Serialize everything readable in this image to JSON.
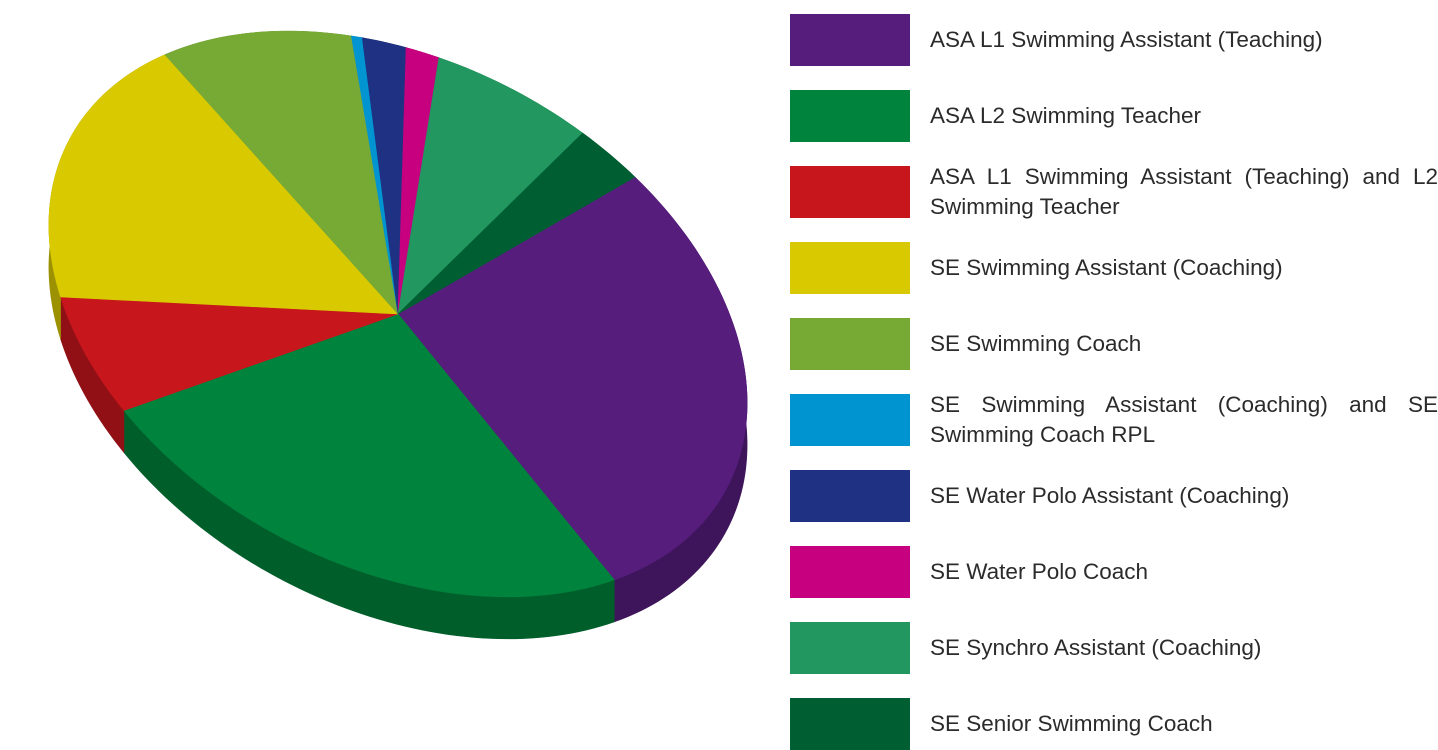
{
  "chart_data": {
    "type": "pie",
    "style": "3d-exploded-tilted",
    "title": "",
    "legend_position": "right",
    "slices": [
      {
        "label": "ASA L1 Swimming Assistant (Teaching)",
        "value": 27.5,
        "color": "#561d7d"
      },
      {
        "label": "ASA L2 Swimming Teacher",
        "value": 25.0,
        "color": "#00833c"
      },
      {
        "label": "ASA L1 Swimming Assistant (Teaching) and L2 Swimming Teacher",
        "value": 6.5,
        "color": "#c8161d"
      },
      {
        "label": "SE Swimming Assistant (Coaching)",
        "value": 17.5,
        "color": "#d9c900"
      },
      {
        "label": "SE Swimming Coach",
        "value": 9.5,
        "color": "#77a935"
      },
      {
        "label": "SE Swimming Assistant (Coaching) and SE Swimming Coach RPL",
        "value": 0.5,
        "color": "#0094d0"
      },
      {
        "label": "SE Water Polo Assistant (Coaching)",
        "value": 2.0,
        "color": "#1f3183"
      },
      {
        "label": "SE Water Polo Coach",
        "value": 1.5,
        "color": "#c6007e"
      },
      {
        "label": "SE Synchro Assistant (Coaching)",
        "value": 7.0,
        "color": "#22975f"
      },
      {
        "label": "SE Senior Swimming Coach",
        "value": 3.0,
        "color": "#005f32"
      }
    ]
  }
}
